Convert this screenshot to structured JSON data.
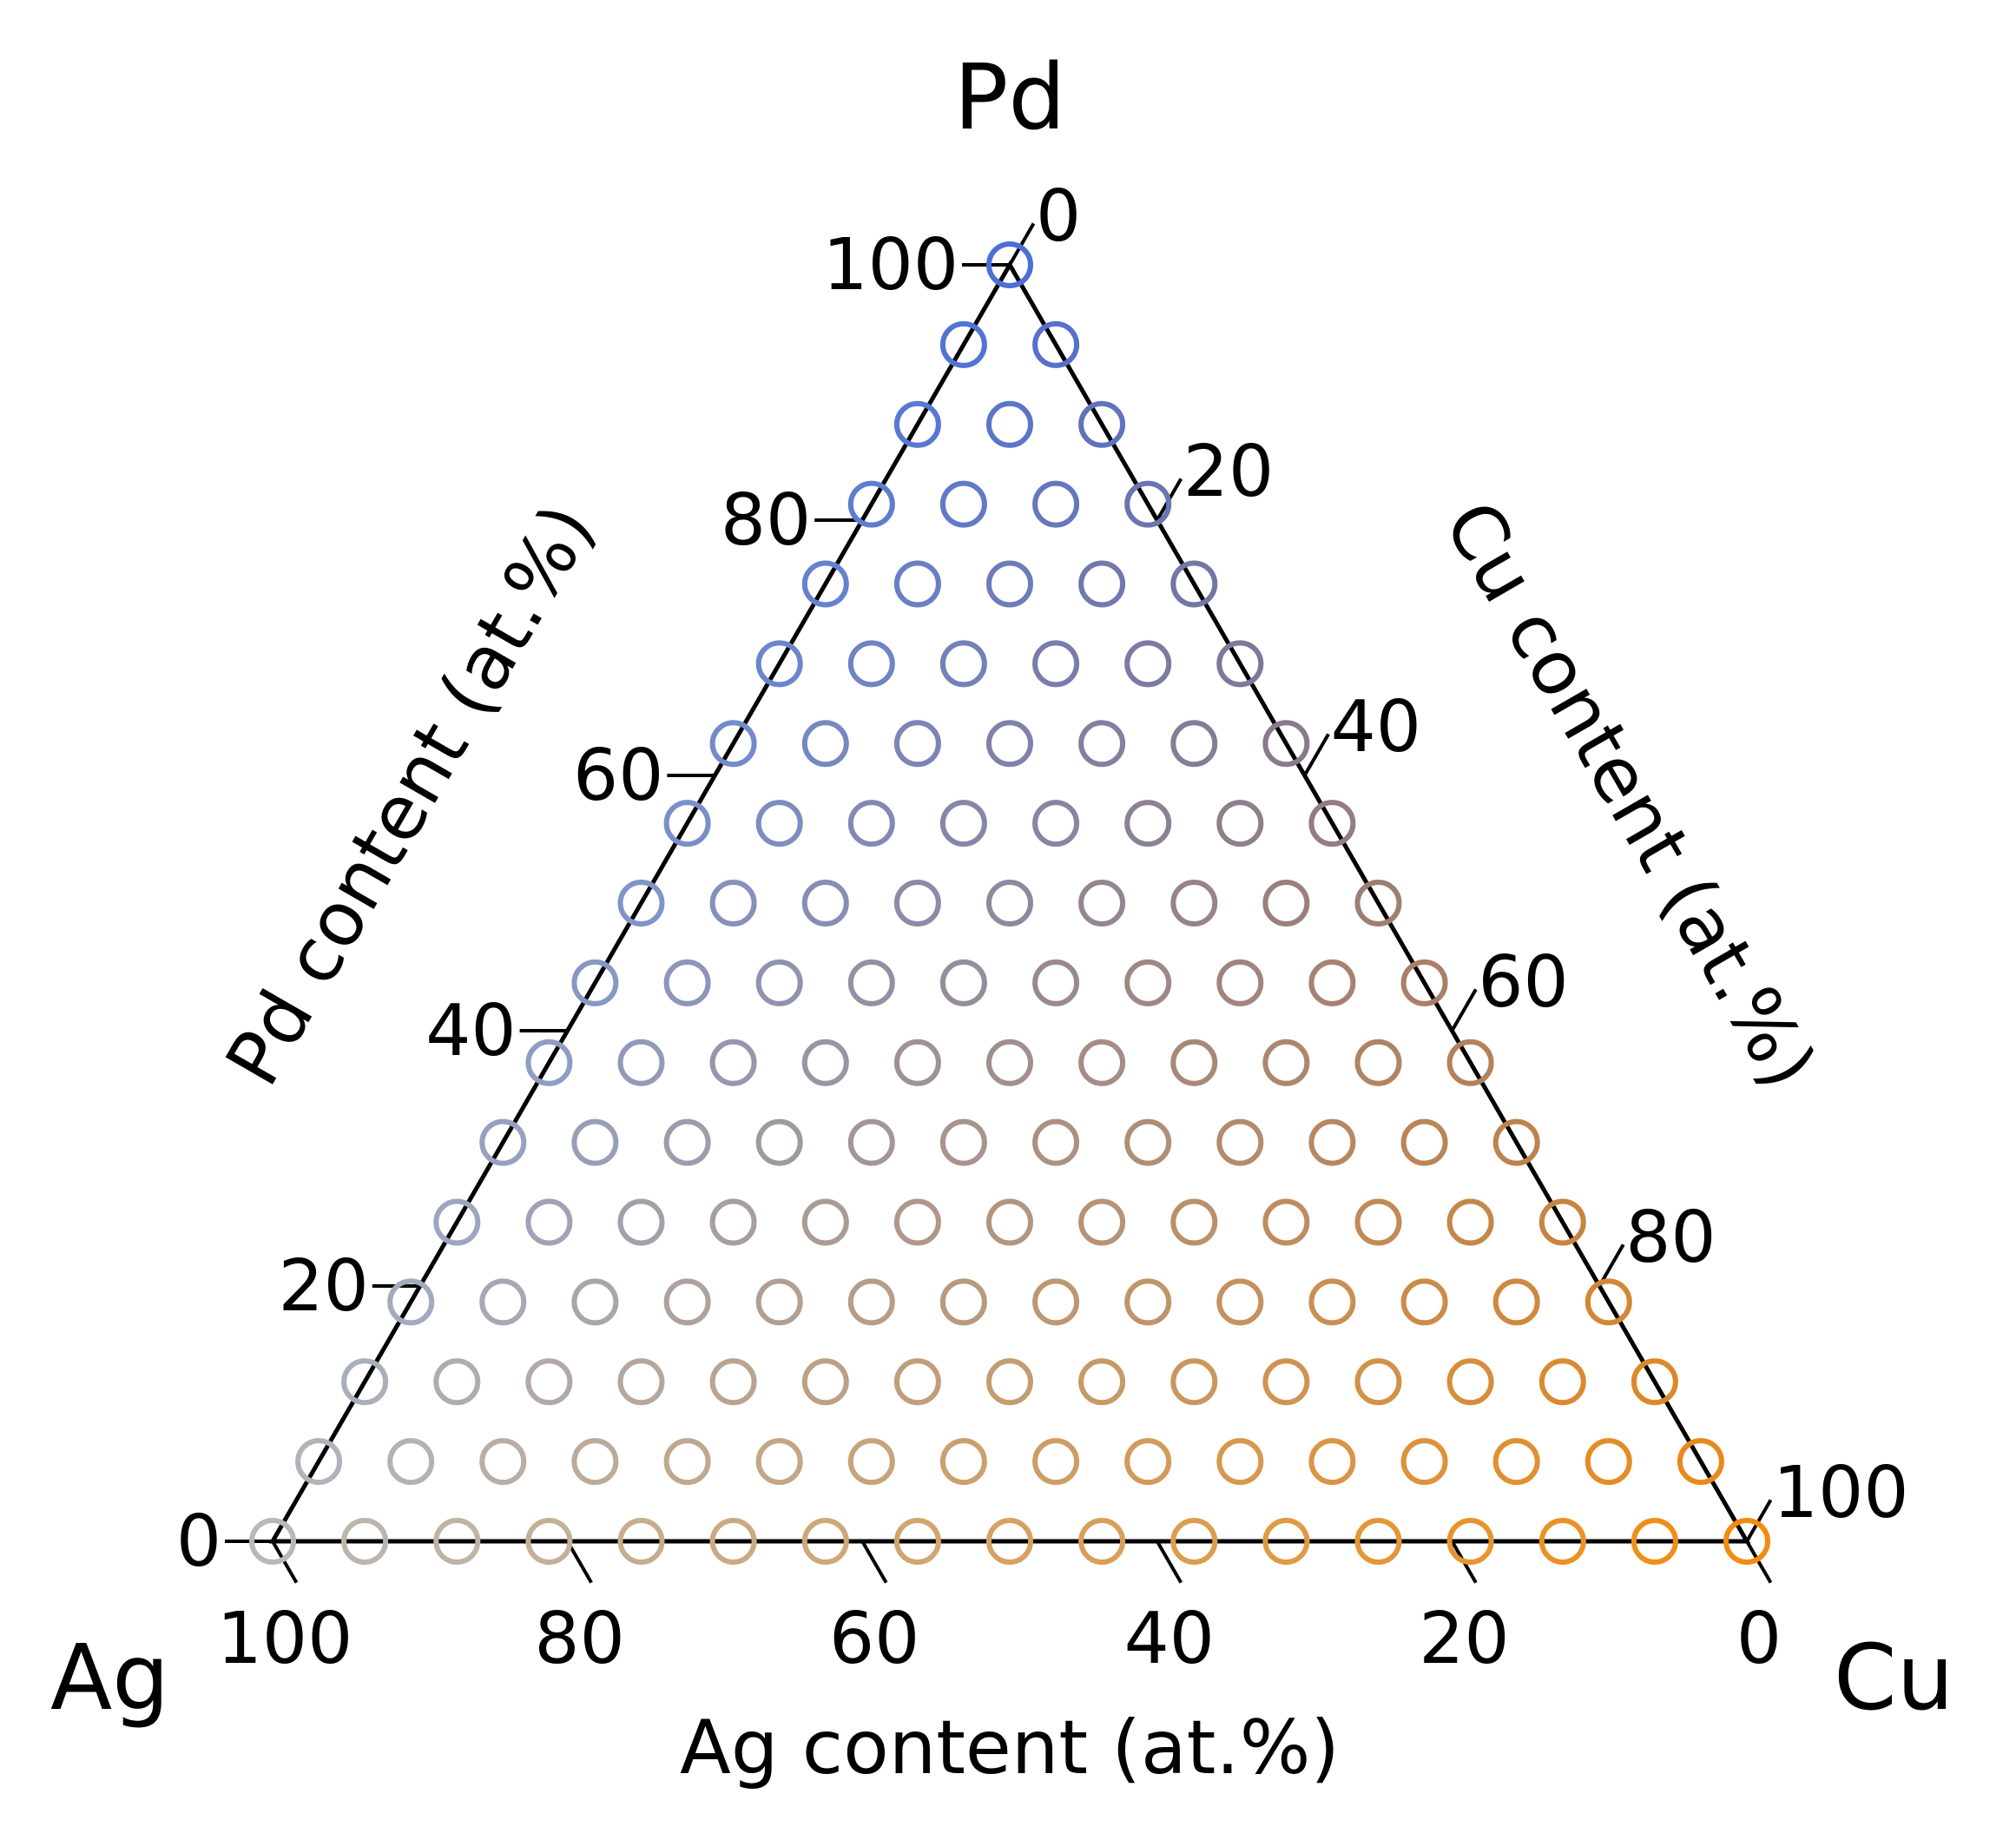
{
  "chart_data": {
    "type": "scatter",
    "subtype": "ternary",
    "corner_labels": {
      "top": "Pd",
      "left": "Ag",
      "right": "Cu"
    },
    "axis_titles": {
      "left": "Pd content (at.%)",
      "right": "Cu content (at.%)",
      "bottom": "Ag content (at.%)"
    },
    "tick_values": [
      0,
      20,
      40,
      60,
      80,
      100
    ],
    "tick_labels": {
      "left": [
        "0",
        "20",
        "40",
        "60",
        "80",
        "100"
      ],
      "right": [
        "0",
        "20",
        "40",
        "60",
        "80",
        "100"
      ],
      "bottom": [
        "100",
        "80",
        "60",
        "40",
        "20",
        "0"
      ]
    },
    "range": [
      0,
      100
    ],
    "grid": false,
    "marker": "open-circle",
    "composition_step": 6.25,
    "colors": {
      "pd_rich": "#4A6FD6",
      "ag_rich": "#B8B8B8",
      "cu_rich": "#F28C0F",
      "frame": "#000000"
    },
    "series": [
      {
        "color_encoding": "color interpolated by Pd / Ag / Cu fraction",
        "points_ag_pd_cu": [
          [
            0,
            0,
            100
          ],
          [
            6.25,
            0,
            93.75
          ],
          [
            12.5,
            0,
            87.5
          ],
          [
            18.75,
            0,
            81.25
          ],
          [
            25,
            0,
            75
          ],
          [
            31.25,
            0,
            68.75
          ],
          [
            37.5,
            0,
            62.5
          ],
          [
            43.75,
            0,
            56.25
          ],
          [
            50,
            0,
            50
          ],
          [
            56.25,
            0,
            43.75
          ],
          [
            62.5,
            0,
            37.5
          ],
          [
            68.75,
            0,
            31.25
          ],
          [
            75,
            0,
            25
          ],
          [
            81.25,
            0,
            18.75
          ],
          [
            87.5,
            0,
            12.5
          ],
          [
            93.75,
            0,
            6.25
          ],
          [
            100,
            0,
            0
          ],
          [
            0,
            6.25,
            93.75
          ],
          [
            6.25,
            6.25,
            87.5
          ],
          [
            12.5,
            6.25,
            81.25
          ],
          [
            18.75,
            6.25,
            75
          ],
          [
            25,
            6.25,
            68.75
          ],
          [
            31.25,
            6.25,
            62.5
          ],
          [
            37.5,
            6.25,
            56.25
          ],
          [
            43.75,
            6.25,
            50
          ],
          [
            50,
            6.25,
            43.75
          ],
          [
            56.25,
            6.25,
            37.5
          ],
          [
            62.5,
            6.25,
            31.25
          ],
          [
            68.75,
            6.25,
            25
          ],
          [
            75,
            6.25,
            18.75
          ],
          [
            81.25,
            6.25,
            12.5
          ],
          [
            87.5,
            6.25,
            6.25
          ],
          [
            93.75,
            6.25,
            0
          ],
          [
            0,
            12.5,
            87.5
          ],
          [
            6.25,
            12.5,
            81.25
          ],
          [
            12.5,
            12.5,
            75
          ],
          [
            18.75,
            12.5,
            68.75
          ],
          [
            25,
            12.5,
            62.5
          ],
          [
            31.25,
            12.5,
            56.25
          ],
          [
            37.5,
            12.5,
            50
          ],
          [
            43.75,
            12.5,
            43.75
          ],
          [
            50,
            12.5,
            37.5
          ],
          [
            56.25,
            12.5,
            31.25
          ],
          [
            62.5,
            12.5,
            25
          ],
          [
            68.75,
            12.5,
            18.75
          ],
          [
            75,
            12.5,
            12.5
          ],
          [
            81.25,
            12.5,
            6.25
          ],
          [
            87.5,
            12.5,
            0
          ],
          [
            0,
            18.75,
            81.25
          ],
          [
            6.25,
            18.75,
            75
          ],
          [
            12.5,
            18.75,
            68.75
          ],
          [
            18.75,
            18.75,
            62.5
          ],
          [
            25,
            18.75,
            56.25
          ],
          [
            31.25,
            18.75,
            50
          ],
          [
            37.5,
            18.75,
            43.75
          ],
          [
            43.75,
            18.75,
            37.5
          ],
          [
            50,
            18.75,
            31.25
          ],
          [
            56.25,
            18.75,
            25
          ],
          [
            62.5,
            18.75,
            18.75
          ],
          [
            68.75,
            18.75,
            12.5
          ],
          [
            75,
            18.75,
            6.25
          ],
          [
            81.25,
            18.75,
            0
          ],
          [
            0,
            25,
            75
          ],
          [
            6.25,
            25,
            68.75
          ],
          [
            12.5,
            25,
            62.5
          ],
          [
            18.75,
            25,
            56.25
          ],
          [
            25,
            25,
            50
          ],
          [
            31.25,
            25,
            43.75
          ],
          [
            37.5,
            25,
            37.5
          ],
          [
            43.75,
            25,
            31.25
          ],
          [
            50,
            25,
            25
          ],
          [
            56.25,
            25,
            18.75
          ],
          [
            62.5,
            25,
            12.5
          ],
          [
            68.75,
            25,
            6.25
          ],
          [
            75,
            25,
            0
          ],
          [
            0,
            31.25,
            68.75
          ],
          [
            6.25,
            31.25,
            62.5
          ],
          [
            12.5,
            31.25,
            56.25
          ],
          [
            18.75,
            31.25,
            50
          ],
          [
            25,
            31.25,
            43.75
          ],
          [
            31.25,
            31.25,
            37.5
          ],
          [
            37.5,
            31.25,
            31.25
          ],
          [
            43.75,
            31.25,
            25
          ],
          [
            50,
            31.25,
            18.75
          ],
          [
            56.25,
            31.25,
            12.5
          ],
          [
            62.5,
            31.25,
            6.25
          ],
          [
            68.75,
            31.25,
            0
          ],
          [
            0,
            37.5,
            62.5
          ],
          [
            6.25,
            37.5,
            56.25
          ],
          [
            12.5,
            37.5,
            50
          ],
          [
            18.75,
            37.5,
            43.75
          ],
          [
            25,
            37.5,
            37.5
          ],
          [
            31.25,
            37.5,
            31.25
          ],
          [
            37.5,
            37.5,
            25
          ],
          [
            43.75,
            37.5,
            18.75
          ],
          [
            50,
            37.5,
            12.5
          ],
          [
            56.25,
            37.5,
            6.25
          ],
          [
            62.5,
            37.5,
            0
          ],
          [
            0,
            43.75,
            56.25
          ],
          [
            6.25,
            43.75,
            50
          ],
          [
            12.5,
            43.75,
            43.75
          ],
          [
            18.75,
            43.75,
            37.5
          ],
          [
            25,
            43.75,
            31.25
          ],
          [
            31.25,
            43.75,
            25
          ],
          [
            37.5,
            43.75,
            18.75
          ],
          [
            43.75,
            43.75,
            12.5
          ],
          [
            50,
            43.75,
            6.25
          ],
          [
            56.25,
            43.75,
            0
          ],
          [
            0,
            50,
            50
          ],
          [
            6.25,
            50,
            43.75
          ],
          [
            12.5,
            50,
            37.5
          ],
          [
            18.75,
            50,
            31.25
          ],
          [
            25,
            50,
            25
          ],
          [
            31.25,
            50,
            18.75
          ],
          [
            37.5,
            50,
            12.5
          ],
          [
            43.75,
            50,
            6.25
          ],
          [
            50,
            50,
            0
          ],
          [
            0,
            56.25,
            43.75
          ],
          [
            6.25,
            56.25,
            37.5
          ],
          [
            12.5,
            56.25,
            31.25
          ],
          [
            18.75,
            56.25,
            25
          ],
          [
            25,
            56.25,
            18.75
          ],
          [
            31.25,
            56.25,
            12.5
          ],
          [
            37.5,
            56.25,
            6.25
          ],
          [
            43.75,
            56.25,
            0
          ],
          [
            0,
            62.5,
            37.5
          ],
          [
            6.25,
            62.5,
            31.25
          ],
          [
            12.5,
            62.5,
            25
          ],
          [
            18.75,
            62.5,
            18.75
          ],
          [
            25,
            62.5,
            12.5
          ],
          [
            31.25,
            62.5,
            6.25
          ],
          [
            37.5,
            62.5,
            0
          ],
          [
            0,
            68.75,
            31.25
          ],
          [
            6.25,
            68.75,
            25
          ],
          [
            12.5,
            68.75,
            18.75
          ],
          [
            18.75,
            68.75,
            12.5
          ],
          [
            25,
            68.75,
            6.25
          ],
          [
            31.25,
            68.75,
            0
          ],
          [
            0,
            75,
            25
          ],
          [
            6.25,
            75,
            18.75
          ],
          [
            12.5,
            75,
            12.5
          ],
          [
            18.75,
            75,
            6.25
          ],
          [
            25,
            75,
            0
          ],
          [
            0,
            81.25,
            18.75
          ],
          [
            6.25,
            81.25,
            12.5
          ],
          [
            12.5,
            81.25,
            6.25
          ],
          [
            18.75,
            81.25,
            0
          ],
          [
            0,
            87.5,
            12.5
          ],
          [
            6.25,
            87.5,
            6.25
          ],
          [
            12.5,
            87.5,
            0
          ],
          [
            0,
            93.75,
            6.25
          ],
          [
            6.25,
            93.75,
            0
          ],
          [
            0,
            100,
            0
          ]
        ]
      }
    ]
  }
}
